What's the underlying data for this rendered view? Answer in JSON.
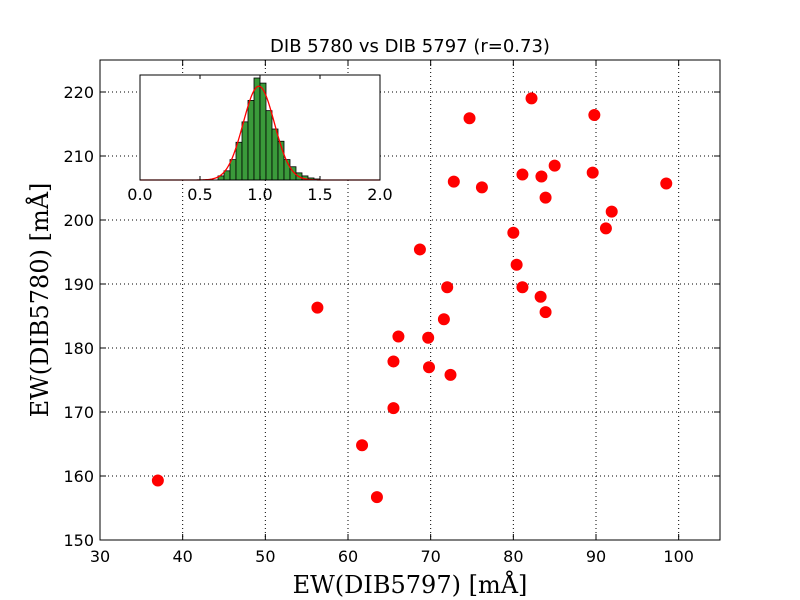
{
  "chart_data": {
    "type": "scatter",
    "title": "DIB 5780 vs DIB 5797 (r=0.73)",
    "xlabel": "EW(DIB5797) [mÅ]",
    "ylabel": "EW(DIB5780) [mÅ]",
    "xlim": [
      30,
      105
    ],
    "ylim": [
      150,
      225
    ],
    "xticks": [
      30,
      40,
      50,
      60,
      70,
      80,
      90,
      100
    ],
    "yticks": [
      150,
      160,
      170,
      180,
      190,
      200,
      210,
      220
    ],
    "grid": true,
    "marker_color": "#ff0000",
    "points": [
      {
        "x": 37.0,
        "y": 159.3
      },
      {
        "x": 56.3,
        "y": 186.3
      },
      {
        "x": 61.7,
        "y": 164.8
      },
      {
        "x": 63.5,
        "y": 156.7
      },
      {
        "x": 65.5,
        "y": 170.6
      },
      {
        "x": 65.5,
        "y": 177.9
      },
      {
        "x": 66.1,
        "y": 181.8
      },
      {
        "x": 68.7,
        "y": 195.4
      },
      {
        "x": 69.7,
        "y": 181.6
      },
      {
        "x": 69.8,
        "y": 177.0
      },
      {
        "x": 71.6,
        "y": 184.5
      },
      {
        "x": 72.0,
        "y": 189.5
      },
      {
        "x": 72.4,
        "y": 175.8
      },
      {
        "x": 72.8,
        "y": 206.0
      },
      {
        "x": 74.7,
        "y": 215.9
      },
      {
        "x": 76.2,
        "y": 205.1
      },
      {
        "x": 80.0,
        "y": 198.0
      },
      {
        "x": 80.4,
        "y": 193.0
      },
      {
        "x": 81.1,
        "y": 189.5
      },
      {
        "x": 81.1,
        "y": 207.1
      },
      {
        "x": 82.2,
        "y": 219.0
      },
      {
        "x": 83.3,
        "y": 188.0
      },
      {
        "x": 83.4,
        "y": 206.8
      },
      {
        "x": 83.9,
        "y": 185.6
      },
      {
        "x": 83.9,
        "y": 203.5
      },
      {
        "x": 85.0,
        "y": 208.5
      },
      {
        "x": 89.6,
        "y": 207.4
      },
      {
        "x": 89.8,
        "y": 216.4
      },
      {
        "x": 91.2,
        "y": 198.7
      },
      {
        "x": 91.9,
        "y": 201.3
      },
      {
        "x": 98.5,
        "y": 205.7
      }
    ],
    "inset": {
      "type": "histogram",
      "xlim": [
        0.0,
        2.0
      ],
      "ylim": [
        0,
        1.0
      ],
      "xticks": [
        "0.0",
        "0.5",
        "1.0",
        "1.5",
        "2.0"
      ],
      "bar_color": "#3a9a3a",
      "curve_color": "#ff0000",
      "bin_width": 0.05,
      "bins": [
        {
          "x": 0.65,
          "h": 0.04
        },
        {
          "x": 0.7,
          "h": 0.09
        },
        {
          "x": 0.75,
          "h": 0.2
        },
        {
          "x": 0.8,
          "h": 0.37
        },
        {
          "x": 0.85,
          "h": 0.57
        },
        {
          "x": 0.9,
          "h": 0.78
        },
        {
          "x": 0.95,
          "h": 1.0
        },
        {
          "x": 1.0,
          "h": 0.95
        },
        {
          "x": 1.05,
          "h": 0.68
        },
        {
          "x": 1.1,
          "h": 0.5
        },
        {
          "x": 1.15,
          "h": 0.38
        },
        {
          "x": 1.2,
          "h": 0.2
        },
        {
          "x": 1.25,
          "h": 0.13
        },
        {
          "x": 1.3,
          "h": 0.07
        },
        {
          "x": 1.35,
          "h": 0.04
        },
        {
          "x": 1.4,
          "h": 0.02
        },
        {
          "x": 1.45,
          "h": 0.01
        }
      ],
      "curve": {
        "mean": 0.99,
        "sigma": 0.13,
        "peak": 0.92
      }
    }
  }
}
